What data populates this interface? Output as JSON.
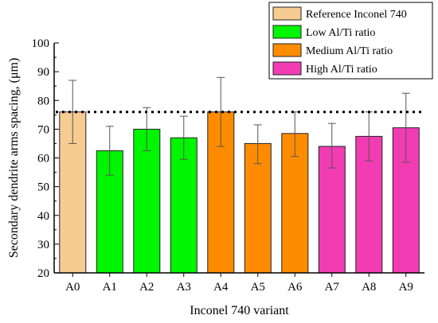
{
  "chart_data": {
    "type": "bar",
    "xlabel": "Inconel 740 variant",
    "ylabel": "Secondary dendrite arms spacing, (μm)",
    "ylim": [
      20,
      100
    ],
    "yticks": [
      20,
      30,
      40,
      50,
      60,
      70,
      80,
      90,
      100
    ],
    "categories": [
      "A0",
      "A1",
      "A2",
      "A3",
      "A4",
      "A5",
      "A6",
      "A7",
      "A8",
      "A9"
    ],
    "values": [
      76,
      62.5,
      70,
      67,
      76,
      65,
      68.5,
      64,
      67.5,
      70.5
    ],
    "error_low": [
      65,
      54,
      62.5,
      59.5,
      64,
      58,
      60.5,
      56.5,
      59,
      58.5
    ],
    "error_high": [
      87,
      71,
      77.5,
      74.5,
      88,
      71.5,
      76,
      72,
      76,
      82.5
    ],
    "group_of_bar": [
      0,
      1,
      1,
      1,
      2,
      2,
      2,
      3,
      3,
      3
    ],
    "reference_line": 76,
    "groups": [
      {
        "label": "Reference Inconel 740",
        "color": "#f7cc92"
      },
      {
        "label": "Low Al/Ti ratio",
        "color": "#00f500"
      },
      {
        "label": "Medium Al/Ti ratio",
        "color": "#ff8c00"
      },
      {
        "label": "High Al/Ti ratio",
        "color": "#f23cb4"
      }
    ],
    "legend_position": "top-right",
    "grid": false
  }
}
